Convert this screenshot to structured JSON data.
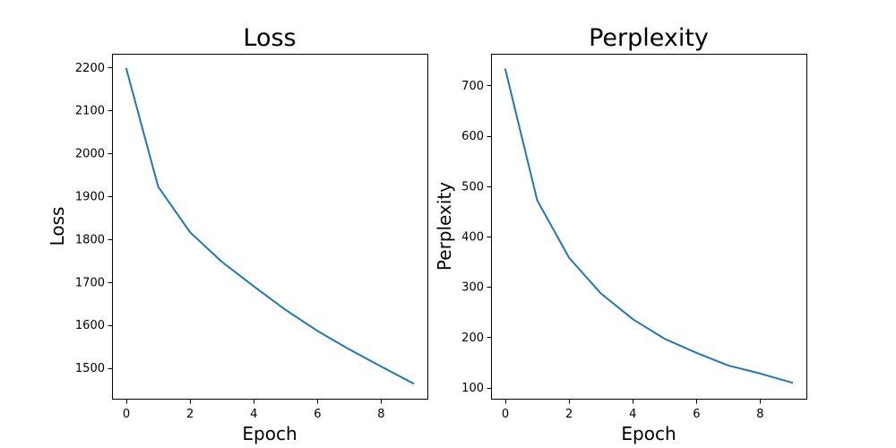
{
  "chart_data": [
    {
      "type": "line",
      "title": "Loss",
      "xlabel": "Epoch",
      "ylabel": "Loss",
      "xlim": [
        -0.45,
        9.45
      ],
      "ylim": [
        1428,
        2232
      ],
      "xticks": [
        0,
        2,
        4,
        6,
        8
      ],
      "yticks": [
        1500,
        1600,
        1700,
        1800,
        1900,
        2000,
        2100,
        2200
      ],
      "grid": false,
      "series": [
        {
          "x": [
            0,
            1,
            2,
            3,
            4,
            5,
            6,
            7,
            8,
            9
          ],
          "values": [
            2197,
            1922,
            1816,
            1747,
            1690,
            1635,
            1586,
            1543,
            1503,
            1464
          ],
          "color": "#1f77b4"
        }
      ]
    },
    {
      "type": "line",
      "title": "Perplexity",
      "xlabel": "Epoch",
      "ylabel": "Perplexity",
      "xlim": [
        -0.45,
        9.45
      ],
      "ylim": [
        78,
        763
      ],
      "xticks": [
        0,
        2,
        4,
        6,
        8
      ],
      "yticks": [
        100,
        200,
        300,
        400,
        500,
        600,
        700
      ],
      "grid": false,
      "series": [
        {
          "x": [
            0,
            1,
            2,
            3,
            4,
            5,
            6,
            7,
            8,
            9
          ],
          "values": [
            732,
            472,
            358,
            287,
            236,
            197,
            169,
            144,
            128,
            110
          ],
          "color": "#1f77b4"
        }
      ]
    }
  ]
}
